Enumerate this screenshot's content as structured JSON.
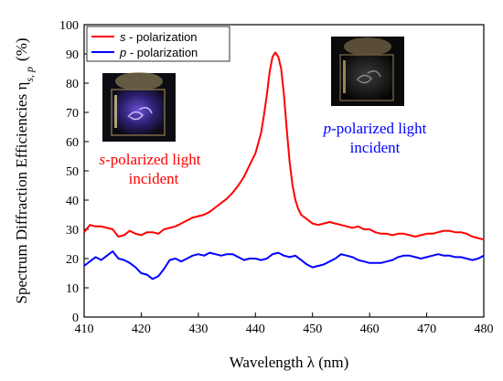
{
  "chart_data": {
    "type": "line",
    "xlabel": "Wavelength λ (nm)",
    "ylabel": "Spectrum Diffraction Efficiencies η",
    "ylabel_sub": "s, p",
    "ylabel_unit": "(%)",
    "xlim": [
      410,
      480
    ],
    "ylim": [
      0,
      100
    ],
    "xticks": [
      "410",
      "420",
      "430",
      "440",
      "450",
      "460",
      "470",
      "480"
    ],
    "yticks": [
      "0",
      "10",
      "20",
      "30",
      "40",
      "50",
      "60",
      "70",
      "80",
      "90",
      "100"
    ],
    "legend_position": "top-left",
    "series": [
      {
        "name": "s - polarization",
        "name_italic": "s",
        "name_rest": " - polarization",
        "color": "#ff0000",
        "x": [
          410,
          411,
          412,
          413,
          414,
          415,
          416,
          417,
          418,
          419,
          420,
          421,
          422,
          423,
          424,
          425,
          426,
          427,
          428,
          429,
          430,
          431,
          432,
          433,
          434,
          435,
          436,
          437,
          438,
          439,
          440,
          441,
          441.5,
          442,
          442.5,
          443,
          443.5,
          444,
          444.5,
          445,
          445.5,
          446,
          446.5,
          447,
          447.5,
          448,
          449,
          450,
          451,
          452,
          453,
          454,
          455,
          456,
          457,
          458,
          459,
          460,
          461,
          462,
          463,
          464,
          465,
          466,
          467,
          468,
          469,
          470,
          471,
          472,
          473,
          474,
          475,
          476,
          477,
          478,
          479,
          480
        ],
        "y": [
          29,
          31.5,
          31,
          31,
          30.5,
          30,
          27.5,
          28,
          29.5,
          28.5,
          28,
          29,
          29,
          28.5,
          30,
          30.5,
          31,
          32,
          33,
          34,
          34.5,
          35,
          36,
          37.5,
          39,
          40.5,
          42.5,
          45,
          48,
          52,
          56,
          63,
          69,
          76,
          84,
          89,
          90.5,
          89,
          85,
          76,
          64,
          53,
          45,
          40,
          37,
          35,
          33.5,
          32,
          31.5,
          32,
          32.5,
          32,
          31.5,
          31,
          30.5,
          31,
          30,
          30,
          29,
          28.5,
          28.5,
          28,
          28.5,
          28.5,
          28,
          27.5,
          28,
          28.5,
          28.5,
          29,
          29.5,
          29.5,
          29,
          29,
          28.5,
          27.5,
          27,
          26.5
        ]
      },
      {
        "name": "p - polarization",
        "name_italic": "p",
        "name_rest": " - polarization",
        "color": "#0000ff",
        "x": [
          410,
          411,
          412,
          413,
          414,
          415,
          416,
          417,
          418,
          419,
          420,
          421,
          422,
          423,
          424,
          425,
          426,
          427,
          428,
          429,
          430,
          431,
          432,
          433,
          434,
          435,
          436,
          437,
          438,
          439,
          440,
          441,
          442,
          443,
          444,
          445,
          446,
          447,
          448,
          449,
          450,
          451,
          452,
          453,
          454,
          455,
          456,
          457,
          458,
          459,
          460,
          461,
          462,
          463,
          464,
          465,
          466,
          467,
          468,
          469,
          470,
          471,
          472,
          473,
          474,
          475,
          476,
          477,
          478,
          479,
          480
        ],
        "y": [
          17.5,
          19,
          20.5,
          19.5,
          21,
          22.5,
          20,
          19.5,
          18.5,
          17,
          15,
          14.5,
          13,
          14,
          16.5,
          19.5,
          20,
          19,
          20,
          21,
          21.5,
          21,
          22,
          21.5,
          21,
          21.5,
          21.5,
          20.5,
          19.5,
          20,
          20,
          19.5,
          20,
          21.5,
          22,
          21,
          20.5,
          21,
          19.5,
          18,
          17,
          17.5,
          18,
          19,
          20,
          21.5,
          21,
          20.5,
          19.5,
          19,
          18.5,
          18.5,
          18.5,
          19,
          19.5,
          20.5,
          21,
          21,
          20.5,
          20,
          20.5,
          21,
          21.5,
          21,
          21,
          20.5,
          20.5,
          20,
          19.5,
          20,
          21
        ]
      }
    ]
  },
  "annotations": {
    "left_line1_italic": "s",
    "left_line1_rest": "-polarized light",
    "left_line2": "incident",
    "right_line1_italic": "p",
    "right_line1_rest": "-polarized light",
    "right_line2": "incident",
    "left_color": "#ff0000",
    "right_color": "#0000ff"
  }
}
